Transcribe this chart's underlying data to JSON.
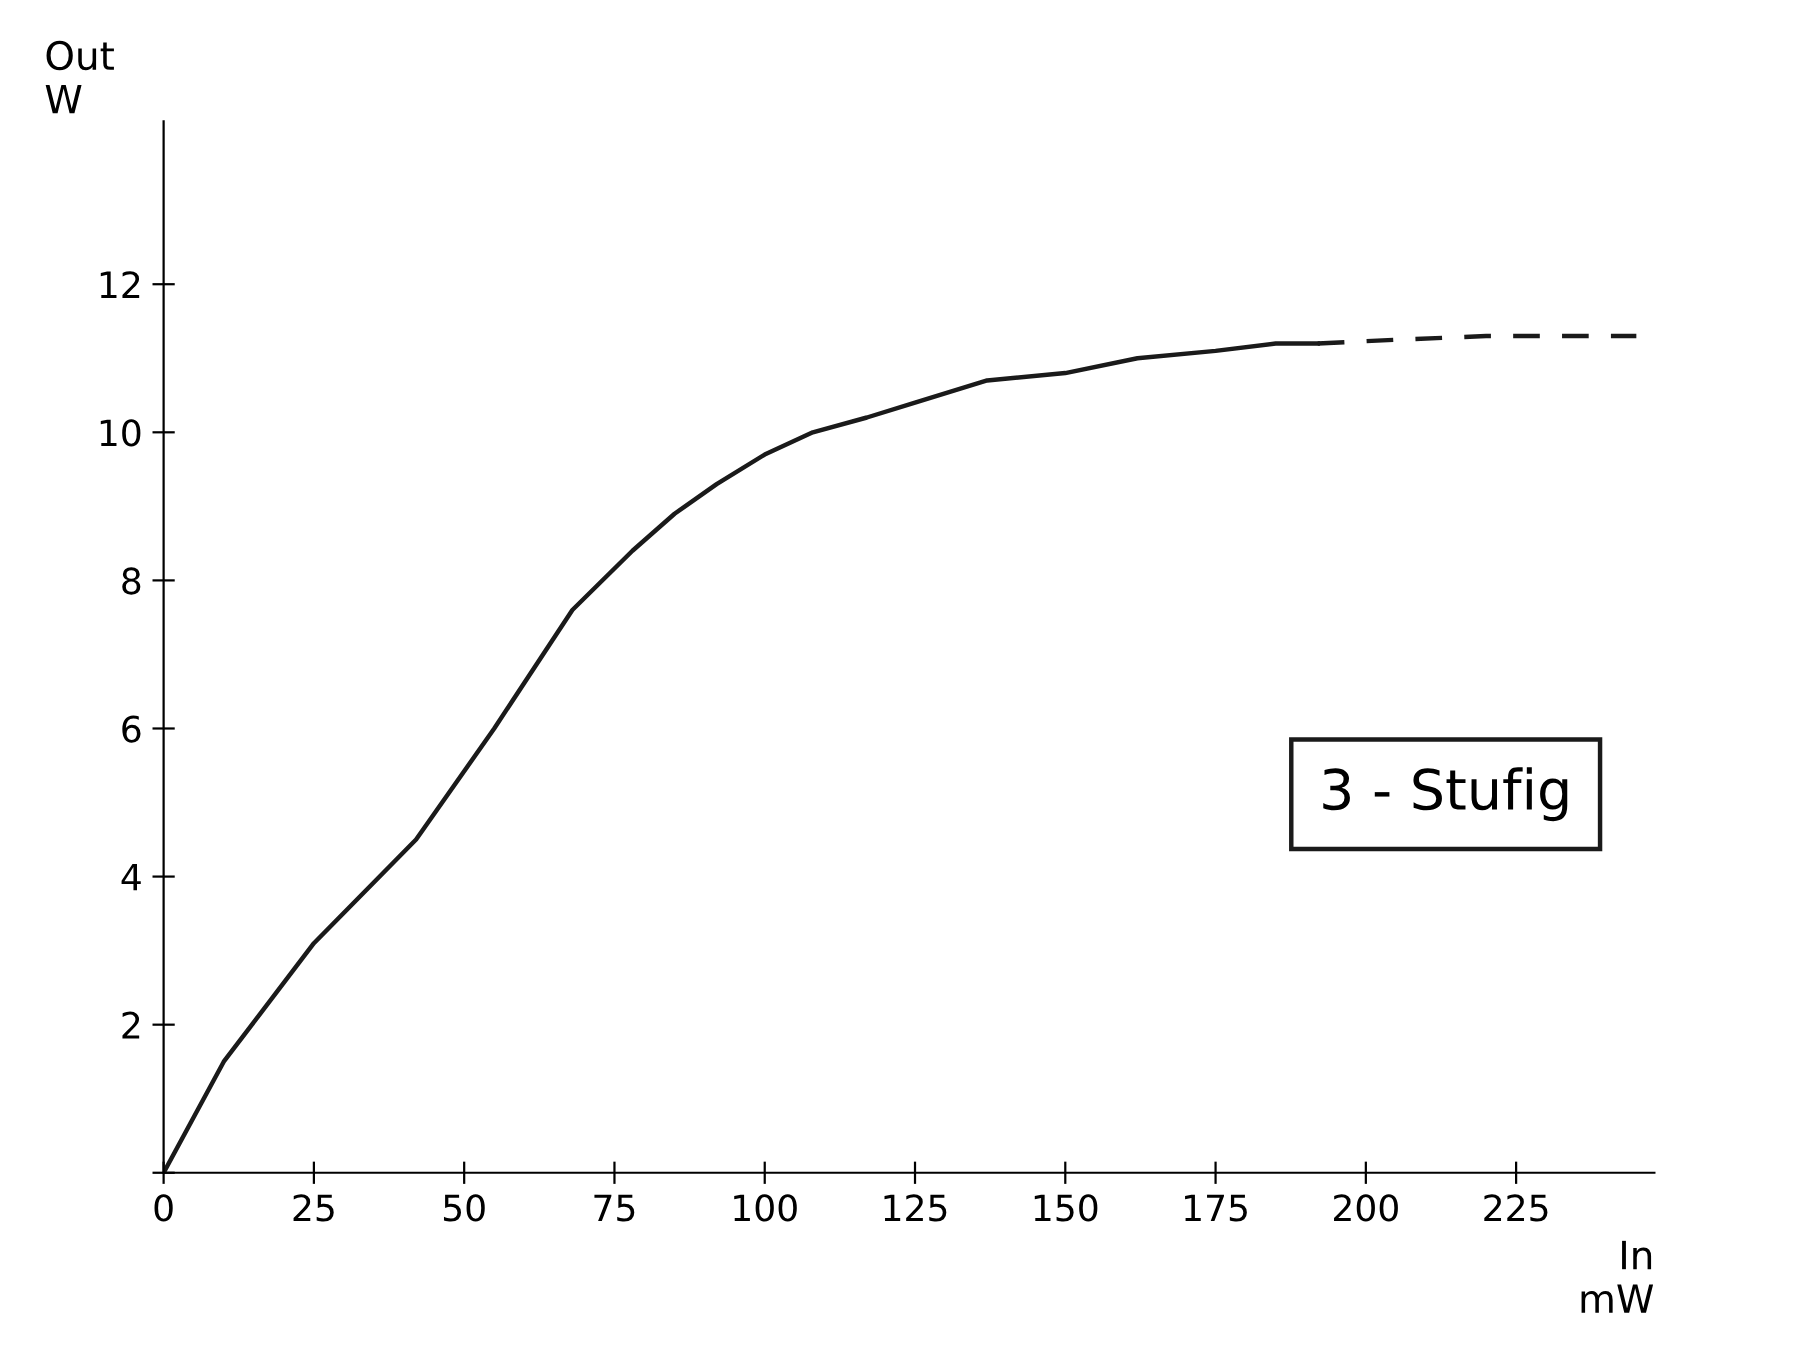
{
  "chart_data": {
    "type": "line",
    "xlabel": "In\nmW",
    "ylabel": "Out\nW",
    "series": [
      {
        "color": "#1a1a1a",
        "line_style": "solid",
        "x": [
          0,
          10,
          25,
          42,
          55,
          68,
          78,
          85,
          92,
          100,
          108,
          117,
          125,
          137,
          150,
          162,
          175,
          185,
          192
        ],
        "values": [
          0,
          1.5,
          3.1,
          4.5,
          6.0,
          7.6,
          8.4,
          8.9,
          9.3,
          9.7,
          10.0,
          10.2,
          10.4,
          10.7,
          10.8,
          11.0,
          11.1,
          11.2,
          11.2
        ]
      },
      {
        "color": "#1a1a1a",
        "line_style": "dashed",
        "x": [
          192,
          205,
          220,
          235,
          245
        ],
        "values": [
          11.2,
          11.25,
          11.3,
          11.3,
          11.3
        ]
      }
    ],
    "xlim": [
      0,
      248
    ],
    "ylim": [
      0,
      14.2
    ],
    "xticks": [
      0,
      25,
      50,
      75,
      100,
      125,
      150,
      175,
      200,
      225
    ],
    "yticks": [
      {
        "value": 0,
        "label": null
      },
      2,
      4,
      6,
      8,
      10,
      12
    ],
    "grid": false,
    "legend": false,
    "marker": "none",
    "annotations": [
      "3 - Stufig"
    ]
  }
}
